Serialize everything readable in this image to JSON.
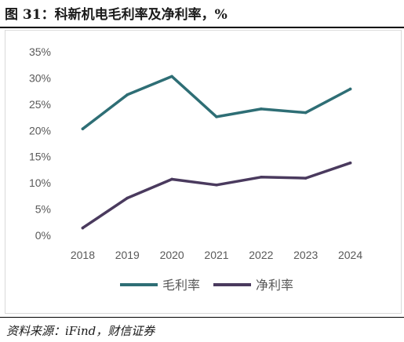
{
  "figure": {
    "title": "图 31：科新机电毛利率及净利率，%",
    "source": "资料来源：iFind，财信证券"
  },
  "chart_data": {
    "type": "line",
    "x": [
      "2018",
      "2019",
      "2020",
      "2021",
      "2022",
      "2023",
      "2024"
    ],
    "series": [
      {
        "name": "毛利率",
        "color": "#2e6e75",
        "values": [
          20.3,
          26.8,
          30.3,
          22.6,
          24.1,
          23.4,
          27.9
        ]
      },
      {
        "name": "净利率",
        "color": "#4a3a5e",
        "values": [
          1.4,
          7.1,
          10.7,
          9.6,
          11.1,
          10.9,
          13.8
        ]
      }
    ],
    "ylim": [
      0,
      35
    ],
    "yticks": [
      "0%",
      "5%",
      "10%",
      "15%",
      "20%",
      "25%",
      "30%",
      "35%"
    ],
    "ytick_values": [
      0,
      5,
      10,
      15,
      20,
      25,
      30,
      35
    ],
    "grid": false,
    "legend": "bottom"
  }
}
